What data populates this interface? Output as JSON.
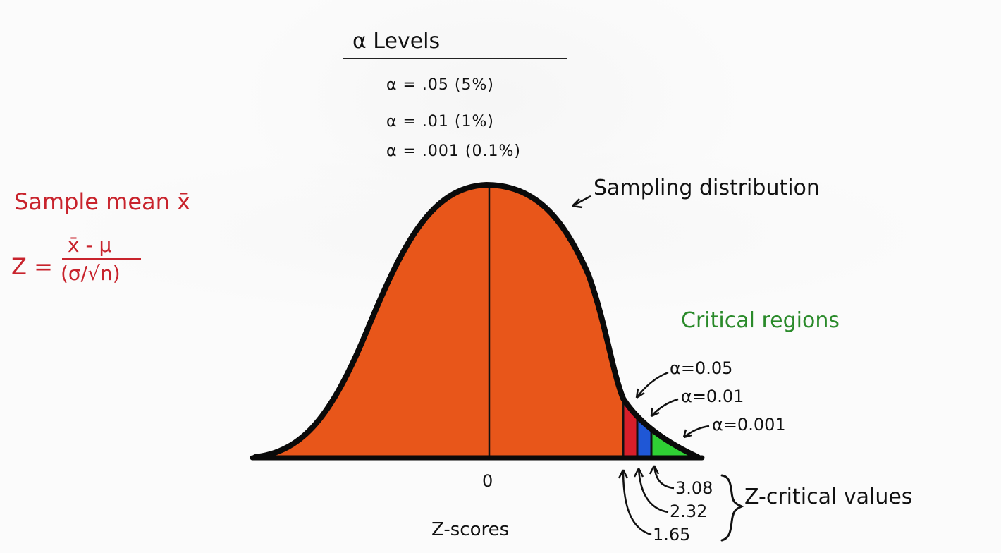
{
  "alpha_levels": {
    "title": "α Levels",
    "items": [
      "α = .05 (5%)",
      "α = .01 (1%)",
      "α = .001 (0.1%)"
    ]
  },
  "formula": {
    "label": "Sample mean x̄",
    "z_lhs": "Z =",
    "numerator": "x̄ - μ",
    "denominator": "(σ/√n)"
  },
  "curve": {
    "label": "Sampling distribution",
    "center_tick": "0",
    "axis_label": "Z-scores",
    "fill_color": "#e8561a"
  },
  "critical": {
    "title": "Critical regions",
    "alphas": [
      "α=0.05",
      "α=0.01",
      "α=0.001"
    ],
    "values": [
      "3.08",
      "2.32",
      "1.65"
    ],
    "values_label": "Z-critical values",
    "region_colors": {
      "red": "#d81e2a",
      "blue": "#1f57d6",
      "green": "#2fd034"
    }
  },
  "colors": {
    "red_text": "#c8232c",
    "green_text": "#2a8a2a"
  }
}
